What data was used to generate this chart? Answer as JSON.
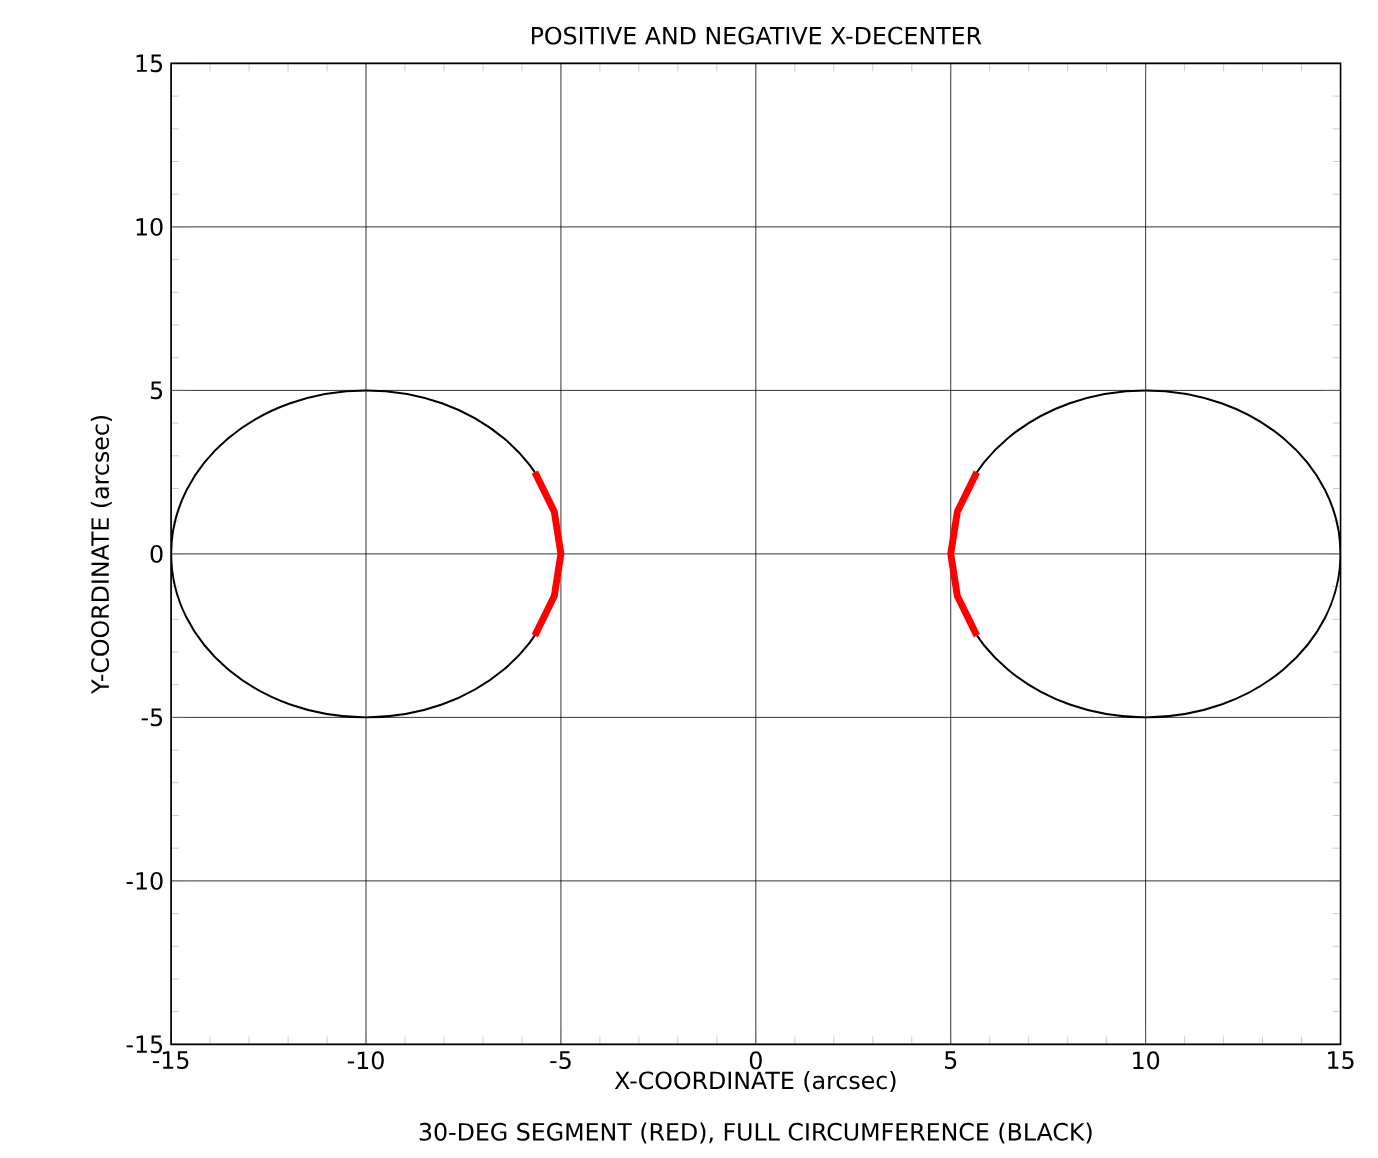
{
  "chart_data": {
    "type": "line",
    "title": "POSITIVE AND NEGATIVE X-DECENTER",
    "xlabel": "X-COORDINATE (arcsec)",
    "ylabel": "Y-COORDINATE (arcsec)",
    "annotations": [
      "30-DEG SEGMENT (RED), FULL CIRCUMFERENCE (BLACK)"
    ],
    "xlim": [
      -15,
      15
    ],
    "ylim": [
      -15,
      15
    ],
    "xticks": [
      -15,
      -10,
      -5,
      0,
      5,
      10,
      15
    ],
    "yticks": [
      -15,
      -10,
      -5,
      0,
      5,
      10,
      15
    ],
    "grid": true,
    "marker": "none",
    "line_style": "solid",
    "series": [
      {
        "color": "#ff0000",
        "x": [
          -5.67,
          -5.17,
          -5,
          -5.17,
          -5.67
        ],
        "values": [
          -2.5,
          -1.29,
          0,
          1.29,
          2.5
        ]
      },
      {
        "color": "#ff0000",
        "x": [
          5.67,
          5.17,
          5,
          5.17,
          5.67
        ],
        "values": [
          -2.5,
          -1.29,
          0,
          1.29,
          2.5
        ]
      }
    ]
  }
}
